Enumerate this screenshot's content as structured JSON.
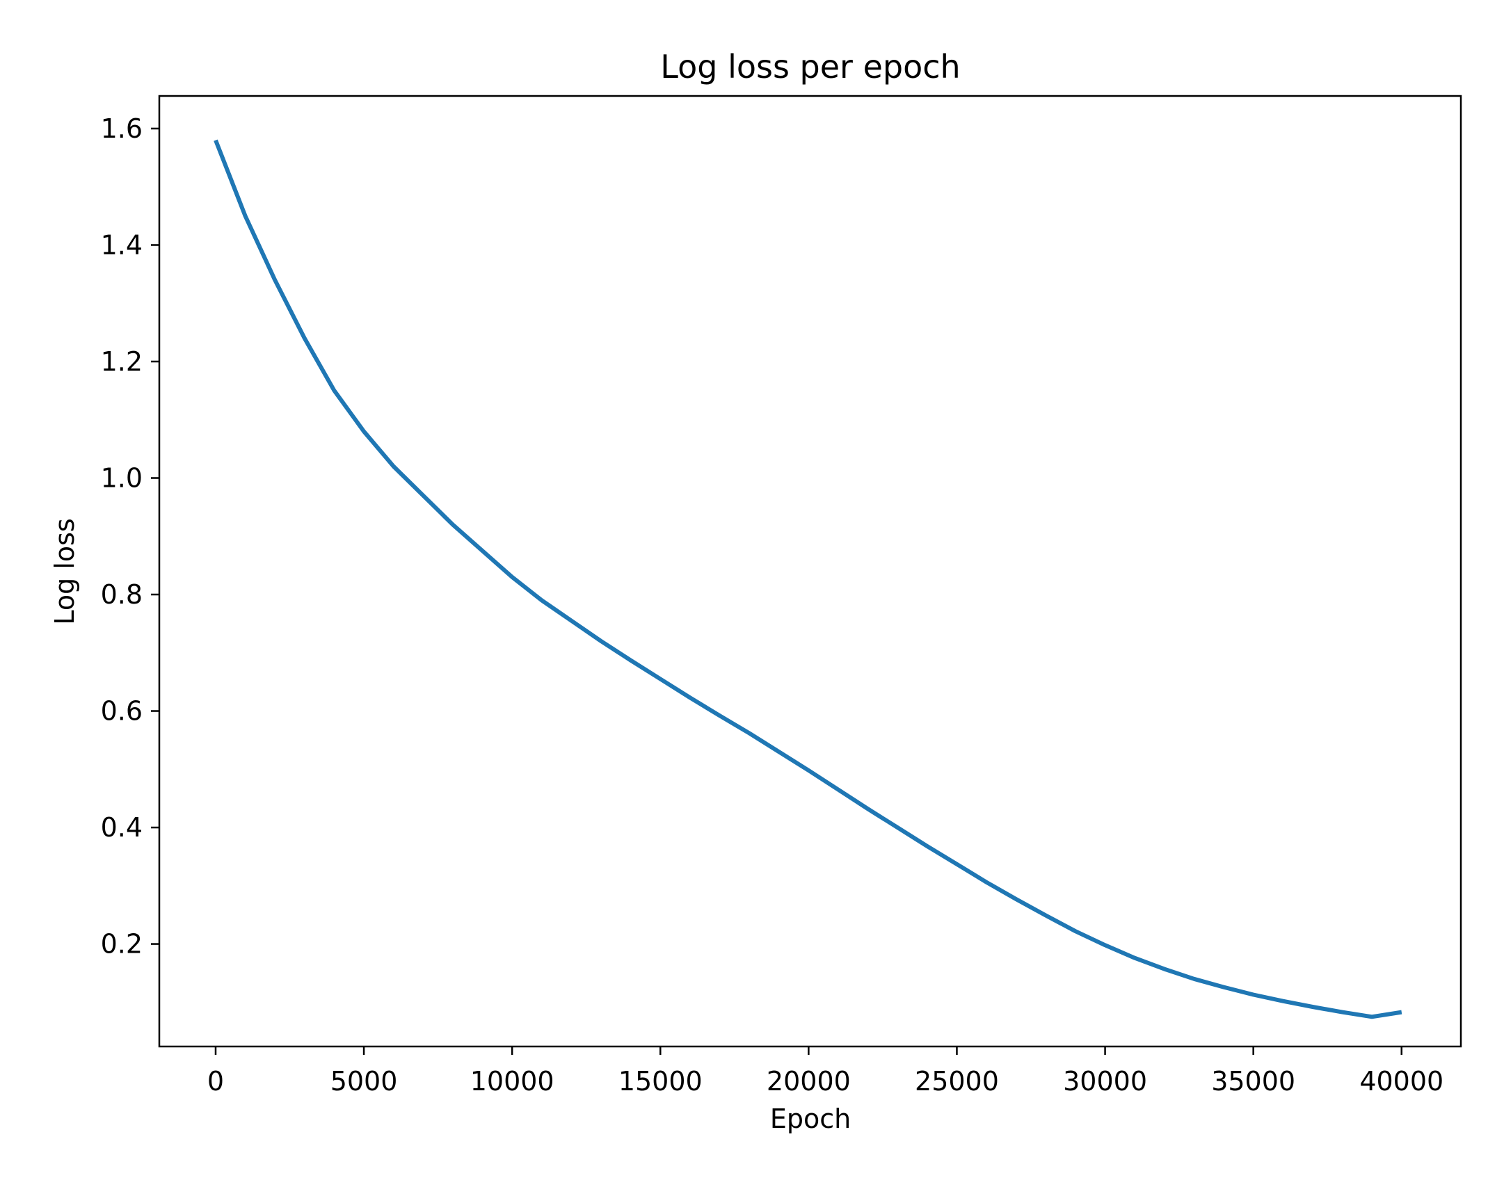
{
  "chart_data": {
    "type": "line",
    "title": "Log loss per epoch",
    "xlabel": "Epoch",
    "ylabel": "Log loss",
    "xlim": [
      -1900,
      42000
    ],
    "ylim": [
      0.024,
      1.656
    ],
    "xticks": [
      {
        "value": 0,
        "label": "0"
      },
      {
        "value": 5000,
        "label": "5000"
      },
      {
        "value": 10000,
        "label": "10000"
      },
      {
        "value": 15000,
        "label": "15000"
      },
      {
        "value": 20000,
        "label": "20000"
      },
      {
        "value": 25000,
        "label": "25000"
      },
      {
        "value": 30000,
        "label": "30000"
      },
      {
        "value": 35000,
        "label": "35000"
      },
      {
        "value": 40000,
        "label": "40000"
      }
    ],
    "yticks": [
      {
        "value": 0.2,
        "label": "0.2"
      },
      {
        "value": 0.4,
        "label": "0.4"
      },
      {
        "value": 0.6,
        "label": "0.6"
      },
      {
        "value": 0.8,
        "label": "0.8"
      },
      {
        "value": 1.0,
        "label": "1.0"
      },
      {
        "value": 1.2,
        "label": "1.2"
      },
      {
        "value": 1.4,
        "label": "1.4"
      },
      {
        "value": 1.6,
        "label": "1.6"
      }
    ],
    "grid": false,
    "legend": "none",
    "series": [
      {
        "color": "#1f77b4",
        "x": [
          0,
          1000,
          2000,
          3000,
          4000,
          5000,
          6000,
          7000,
          8000,
          9000,
          10000,
          11000,
          12000,
          13000,
          14000,
          15000,
          16000,
          17000,
          18000,
          19000,
          20000,
          21000,
          22000,
          23000,
          24000,
          25000,
          26000,
          27000,
          28000,
          29000,
          30000,
          31000,
          32000,
          33000,
          34000,
          35000,
          36000,
          37000,
          38000,
          39000,
          40000
        ],
        "y": [
          1.58,
          1.45,
          1.34,
          1.24,
          1.15,
          1.08,
          1.02,
          0.97,
          0.92,
          0.875,
          0.83,
          0.79,
          0.755,
          0.72,
          0.687,
          0.655,
          0.623,
          0.592,
          0.562,
          0.53,
          0.498,
          0.465,
          0.432,
          0.4,
          0.368,
          0.337,
          0.306,
          0.277,
          0.249,
          0.222,
          0.198,
          0.176,
          0.157,
          0.14,
          0.126,
          0.113,
          0.102,
          0.092,
          0.083,
          0.075,
          0.083
        ]
      }
    ]
  }
}
